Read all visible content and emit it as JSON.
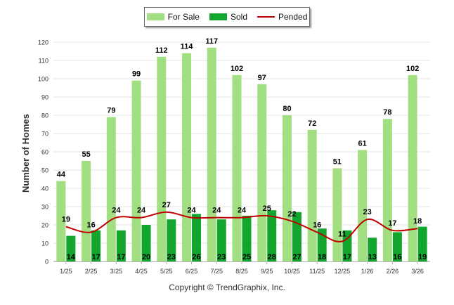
{
  "colors": {
    "for_sale": "#a2df83",
    "sold": "#13a62e",
    "pended": "#c00000",
    "grid": "#e6e6e6",
    "axis": "#b0b0b0",
    "text": "#000000"
  },
  "copyright": "Copyright © TrendGraphix, Inc.",
  "chart_data": {
    "type": "bar",
    "title": "",
    "xlabel": "",
    "ylabel": "Number of Homes",
    "ylim": [
      0,
      120
    ],
    "yticks": [
      0,
      10,
      20,
      30,
      40,
      50,
      60,
      70,
      80,
      90,
      100,
      110,
      120
    ],
    "grid": true,
    "legend": "top-center",
    "categories": [
      "1/25",
      "2/25",
      "3/25",
      "4/25",
      "5/25",
      "6/25",
      "7/25",
      "8/25",
      "9/25",
      "10/25",
      "11/25",
      "12/25",
      "1/26",
      "2/26",
      "3/26"
    ],
    "series": [
      {
        "name": "For Sale",
        "type": "bar",
        "values": [
          44,
          55,
          79,
          99,
          112,
          114,
          117,
          102,
          97,
          80,
          72,
          51,
          61,
          78,
          102
        ]
      },
      {
        "name": "Sold",
        "type": "bar",
        "values": [
          14,
          17,
          17,
          20,
          23,
          26,
          23,
          25,
          28,
          27,
          18,
          17,
          13,
          16,
          19
        ]
      },
      {
        "name": "Pended",
        "type": "line",
        "values": [
          19,
          16,
          24,
          24,
          27,
          24,
          24,
          24,
          25,
          22,
          16,
          11,
          23,
          17,
          18
        ]
      }
    ]
  }
}
